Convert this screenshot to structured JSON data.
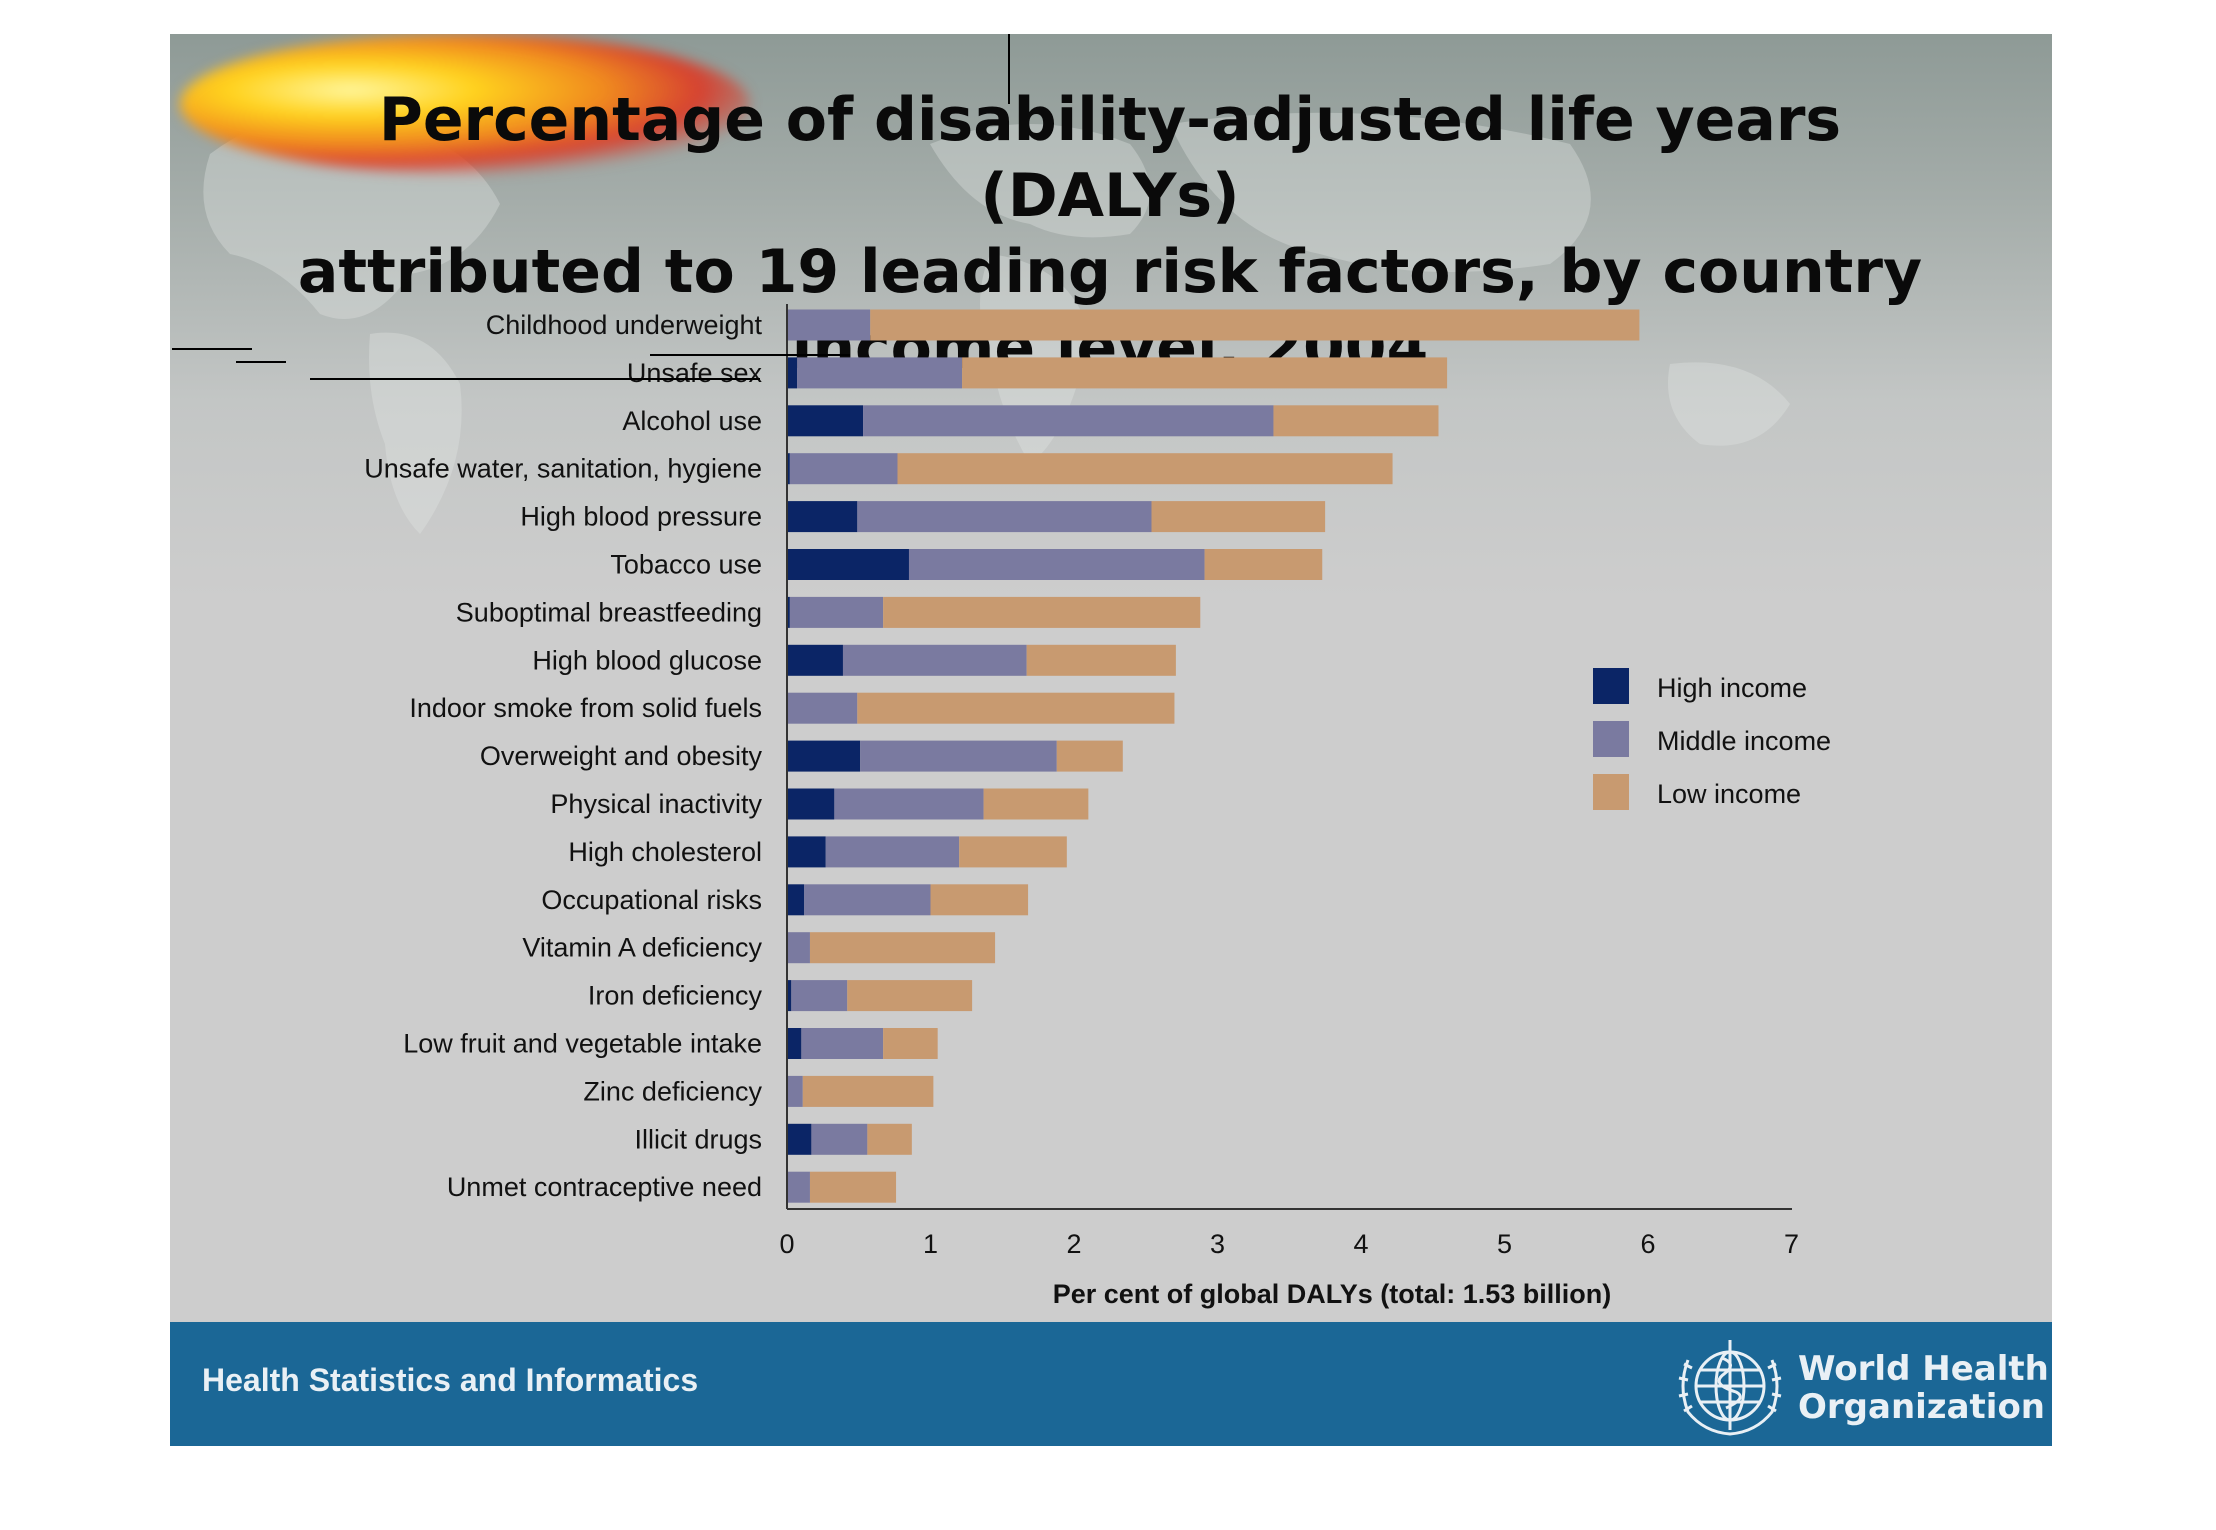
{
  "title_lines": [
    "Percentage of disability-adjusted life years (DALYs)",
    "attributed to 19 leading risk factors, by country",
    "income level, 2004"
  ],
  "footer": {
    "left_text": "Health Statistics and Informatics",
    "org_name_line1": "World Health",
    "org_name_line2": "Organization"
  },
  "colors": {
    "high_income": "#0b2566",
    "middle_income": "#7a7aa0",
    "low_income": "#c89a70",
    "footer_band": "#1b6796"
  },
  "icons": [
    "who-emblem-icon"
  ],
  "chart_data": {
    "type": "bar",
    "orientation": "horizontal",
    "stacked": true,
    "title": "Percentage of disability-adjusted life years (DALYs) attributed to 19 leading risk factors, by country income level, 2004",
    "xlabel": "Per cent of global DALYs (total: 1.53 billion)",
    "ylabel": "",
    "xlim": [
      0,
      7
    ],
    "xticks": [
      "0",
      "1",
      "2",
      "3",
      "4",
      "5",
      "6",
      "7"
    ],
    "grid": false,
    "legend_position": "right",
    "categories": [
      "Childhood underweight",
      "Unsafe sex",
      "Alcohol use",
      "Unsafe water, sanitation, hygiene",
      "High blood pressure",
      "Tobacco use",
      "Suboptimal breastfeeding",
      "High blood glucose",
      "Indoor smoke from solid fuels",
      "Overweight and obesity",
      "Physical inactivity",
      "High cholesterol",
      "Occupational risks",
      "Vitamin A deficiency",
      "Iron deficiency",
      "Low fruit and vegetable intake",
      "Zinc deficiency",
      "Illicit drugs",
      "Unmet contraceptive need"
    ],
    "series": [
      {
        "name": "High income",
        "values": [
          0.0,
          0.07,
          0.53,
          0.02,
          0.49,
          0.85,
          0.02,
          0.39,
          0.0,
          0.51,
          0.33,
          0.27,
          0.12,
          0.0,
          0.03,
          0.1,
          0.0,
          0.17,
          0.0
        ]
      },
      {
        "name": "Middle income",
        "values": [
          0.58,
          1.15,
          2.86,
          0.75,
          2.05,
          2.06,
          0.65,
          1.28,
          0.49,
          1.37,
          1.04,
          0.93,
          0.88,
          0.16,
          0.39,
          0.57,
          0.11,
          0.39,
          0.16
        ]
      },
      {
        "name": "Low income",
        "values": [
          5.36,
          3.38,
          1.15,
          3.45,
          1.21,
          0.82,
          2.21,
          1.04,
          2.21,
          0.46,
          0.73,
          0.75,
          0.68,
          1.29,
          0.87,
          0.38,
          0.91,
          0.31,
          0.6
        ]
      }
    ]
  }
}
